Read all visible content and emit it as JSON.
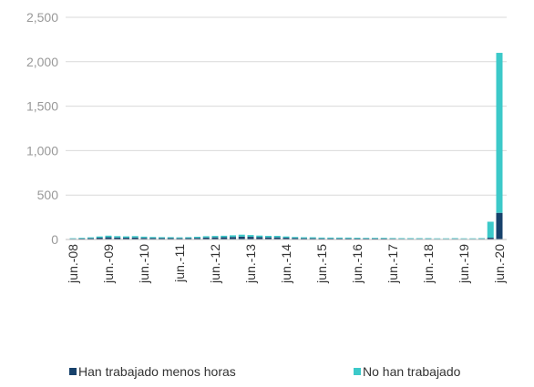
{
  "chart_data": {
    "type": "bar",
    "stacked": true,
    "categories": [
      "jun.-08",
      null,
      null,
      null,
      "jun.-09",
      null,
      null,
      null,
      "jun.-10",
      null,
      null,
      null,
      "jun.-11",
      null,
      null,
      null,
      "jun.-12",
      null,
      null,
      null,
      "jun.-13",
      null,
      null,
      null,
      "jun.-14",
      null,
      null,
      null,
      "jun.-15",
      null,
      null,
      null,
      "jun.-16",
      null,
      null,
      null,
      "jun.-17",
      null,
      null,
      null,
      "jun.-18",
      null,
      null,
      null,
      "jun.-19",
      null,
      null,
      null,
      "jun.-20"
    ],
    "series": [
      {
        "name": "Han trabajado menos horas",
        "color": "#17416b",
        "values": [
          8,
          10,
          14,
          20,
          25,
          22,
          20,
          22,
          18,
          16,
          15,
          15,
          14,
          15,
          18,
          22,
          24,
          25,
          28,
          32,
          30,
          26,
          24,
          24,
          20,
          16,
          14,
          14,
          12,
          12,
          12,
          12,
          11,
          10,
          10,
          10,
          9,
          8,
          8,
          8,
          8,
          7,
          7,
          8,
          7,
          7,
          8,
          20,
          300
        ]
      },
      {
        "name": "No han trabajado",
        "color": "#3cc9c9",
        "values": [
          6,
          8,
          10,
          14,
          18,
          16,
          15,
          16,
          14,
          12,
          11,
          11,
          10,
          11,
          13,
          15,
          16,
          17,
          19,
          22,
          20,
          18,
          17,
          17,
          14,
          12,
          11,
          11,
          10,
          10,
          10,
          10,
          9,
          8,
          8,
          8,
          7,
          7,
          7,
          7,
          7,
          6,
          6,
          7,
          6,
          6,
          7,
          180,
          1800
        ]
      }
    ],
    "ylim": [
      0,
      2500
    ],
    "yticks": [
      0,
      500,
      {
        "value": 1000,
        "label": "1,000"
      },
      {
        "value": 1500,
        "label": "1,500"
      },
      {
        "value": 2000,
        "label": "2,000"
      },
      {
        "value": 2500,
        "label": "2,500"
      }
    ],
    "grid": true,
    "legend": "bottom"
  }
}
